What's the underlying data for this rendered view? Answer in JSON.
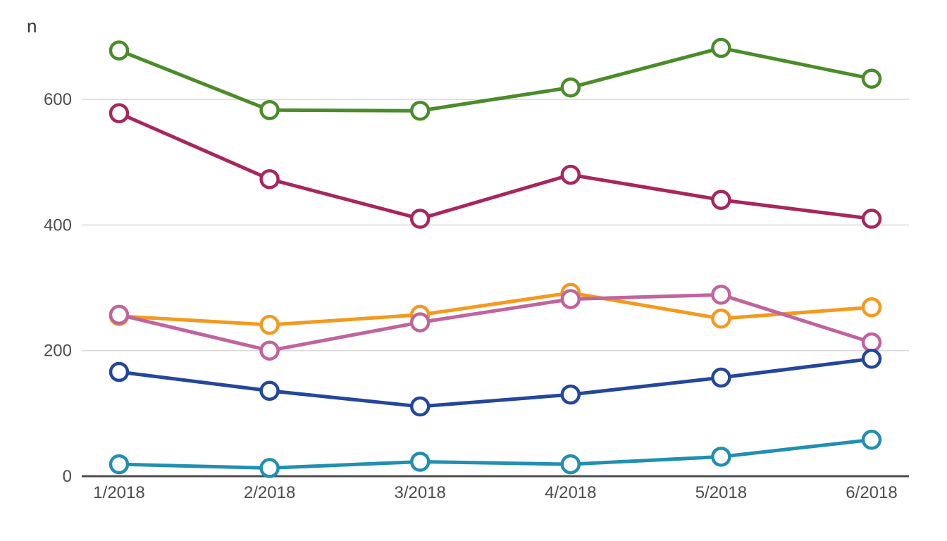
{
  "chart_data": {
    "type": "line",
    "title": "",
    "xlabel": "",
    "ylabel": "n",
    "x": [
      "1/2018",
      "2/2018",
      "3/2018",
      "4/2018",
      "5/2018",
      "6/2018"
    ],
    "ylim": [
      0,
      700
    ],
    "yticks": [
      0,
      200,
      400,
      600
    ],
    "grid": "horizontal",
    "legend": "none",
    "series": [
      {
        "color": "#4a8c2a",
        "values": [
          678,
          583,
          582,
          619,
          682,
          633
        ]
      },
      {
        "color": "#a8265e",
        "values": [
          578,
          473,
          410,
          480,
          440,
          410
        ]
      },
      {
        "color": "#f39a1e",
        "values": [
          255,
          241,
          257,
          292,
          251,
          269
        ]
      },
      {
        "color": "#c0649f",
        "values": [
          257,
          200,
          245,
          282,
          289,
          213
        ]
      },
      {
        "color": "#22479b",
        "values": [
          166,
          136,
          111,
          130,
          157,
          187
        ]
      },
      {
        "color": "#218fb1",
        "values": [
          19,
          13,
          23,
          19,
          31,
          58
        ]
      }
    ]
  }
}
